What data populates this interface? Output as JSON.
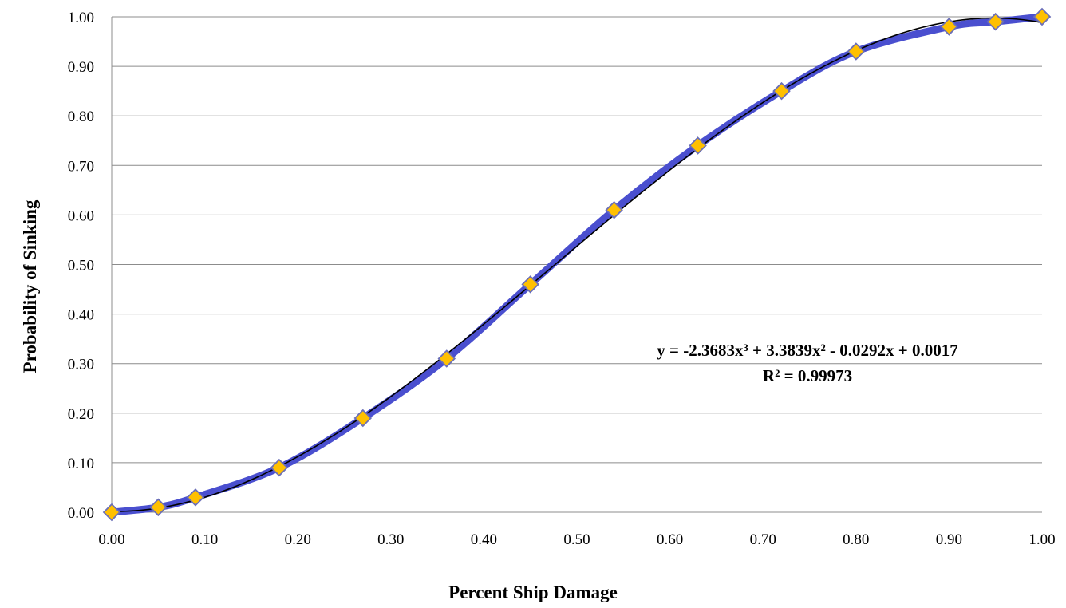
{
  "chart_data": {
    "type": "scatter",
    "title": "",
    "xlabel": "Percent Ship Damage",
    "ylabel": "Probability of Sinking",
    "xlim": [
      0,
      1
    ],
    "ylim": [
      0,
      1
    ],
    "x_ticks": [
      "0.00",
      "0.10",
      "0.20",
      "0.30",
      "0.40",
      "0.50",
      "0.60",
      "0.70",
      "0.80",
      "0.90",
      "1.00"
    ],
    "y_ticks": [
      "0.00",
      "0.10",
      "0.20",
      "0.30",
      "0.40",
      "0.50",
      "0.60",
      "0.70",
      "0.80",
      "0.90",
      "1.00"
    ],
    "grid": "horizontal",
    "series": [
      {
        "x": [
          0.0,
          0.05,
          0.09,
          0.18,
          0.27,
          0.36,
          0.45,
          0.54,
          0.63,
          0.72,
          0.8,
          0.9,
          0.95,
          1.0
        ],
        "y": [
          0.0,
          0.01,
          0.03,
          0.09,
          0.19,
          0.31,
          0.46,
          0.61,
          0.74,
          0.85,
          0.93,
          0.98,
          0.99,
          1.0
        ],
        "line_color": "#4a4fcf",
        "marker": "diamond",
        "marker_color": "#ffc000",
        "marker_edge": "#6b6fb8"
      }
    ],
    "trendline": {
      "type": "polynomial",
      "order": 3,
      "coefficients": [
        -2.3683,
        3.3839,
        -0.0292,
        0.0017
      ],
      "color": "#000000"
    },
    "annotation": {
      "equation": "y = -2.3683x³ + 3.3839x² - 0.0292x + 0.0017",
      "r2": "R² = 0.99973"
    }
  }
}
